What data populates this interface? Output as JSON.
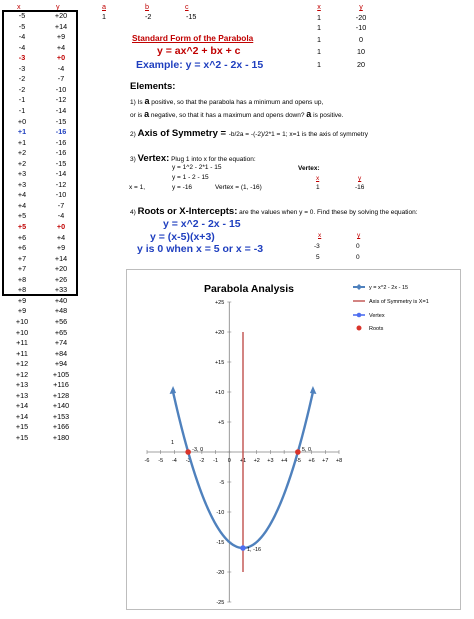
{
  "left_table": {
    "x_header": "x",
    "y_header": "y",
    "rows": [
      {
        "x": "-5",
        "y": "+20"
      },
      {
        "x": "-5",
        "y": "+14"
      },
      {
        "x": "-4",
        "y": "+9"
      },
      {
        "x": "-4",
        "y": "+4"
      },
      {
        "x": "-3",
        "y": "+0",
        "hl": "red"
      },
      {
        "x": "-3",
        "y": "-4"
      },
      {
        "x": "-2",
        "y": "-7"
      },
      {
        "x": "-2",
        "y": "-10"
      },
      {
        "x": "-1",
        "y": "-12"
      },
      {
        "x": "-1",
        "y": "-14"
      },
      {
        "x": "+0",
        "y": "-15"
      },
      {
        "x": "+1",
        "y": "-16",
        "hl": "blue"
      },
      {
        "x": "+1",
        "y": "-16"
      },
      {
        "x": "+2",
        "y": "-16"
      },
      {
        "x": "+2",
        "y": "-15"
      },
      {
        "x": "+3",
        "y": "-14"
      },
      {
        "x": "+3",
        "y": "-12"
      },
      {
        "x": "+4",
        "y": "-10"
      },
      {
        "x": "+4",
        "y": "-7"
      },
      {
        "x": "+5",
        "y": "-4"
      },
      {
        "x": "+5",
        "y": "+0",
        "hl": "red"
      },
      {
        "x": "+6",
        "y": "+4"
      },
      {
        "x": "+6",
        "y": "+9"
      },
      {
        "x": "+7",
        "y": "+14"
      },
      {
        "x": "+7",
        "y": "+20"
      },
      {
        "x": "+8",
        "y": "+26"
      },
      {
        "x": "+8",
        "y": "+33"
      },
      {
        "x": "+9",
        "y": "+40"
      },
      {
        "x": "+9",
        "y": "+48"
      },
      {
        "x": "+10",
        "y": "+56"
      },
      {
        "x": "+10",
        "y": "+65"
      },
      {
        "x": "+11",
        "y": "+74"
      },
      {
        "x": "+11",
        "y": "+84"
      },
      {
        "x": "+12",
        "y": "+94"
      },
      {
        "x": "+12",
        "y": "+105"
      },
      {
        "x": "+13",
        "y": "+116"
      },
      {
        "x": "+13",
        "y": "+128"
      },
      {
        "x": "+14",
        "y": "+140"
      },
      {
        "x": "+14",
        "y": "+153"
      },
      {
        "x": "+15",
        "y": "+166"
      },
      {
        "x": "+15",
        "y": "+180"
      }
    ]
  },
  "coeffs": {
    "a_header": "a",
    "b_header": "b",
    "c_header": "c",
    "a": "1",
    "b": "-2",
    "c": "-15"
  },
  "std_form": {
    "title": "Standard Form of the Parabola",
    "formula": "y = ax^2 + bx + c",
    "example": "Example: y = x^2 - 2x - 15"
  },
  "right_table": {
    "x_header": "x",
    "y_header": "y",
    "rows": [
      {
        "x": "1",
        "y": "-20"
      },
      {
        "x": "1",
        "y": "-10"
      },
      {
        "x": "1",
        "y": "0"
      },
      {
        "x": "1",
        "y": "10"
      },
      {
        "x": "1",
        "y": "20"
      }
    ]
  },
  "elements": {
    "title": "Elements:",
    "line1_pre": "1) Is ",
    "line1_a": "a",
    "line1_post": " positive, so that the parabola has a minimum and opens up,",
    "line2_pre": "or is ",
    "line2_a": "a",
    "line2_mid": " negative, so that it has a maximum and opens down? ",
    "line2_a2": "a",
    "line2_post": " is positive."
  },
  "axis": {
    "num": "2) ",
    "title": "Axis of Symmetry = ",
    "formula": "-b/2a = -(-2)/2*1 = 1; x=1 is the axis of symmetry"
  },
  "vertex": {
    "num": "3) ",
    "title": "Vertex:",
    "desc": " Plug 1 into x for the equation:",
    "line1": "y = 1^2 - 2*1 - 15",
    "line2": "y = 1 - 2 - 15",
    "x_label": "x = 1,",
    "y_eq": "y = -16",
    "vertex_text": "Vertex = (1, -16)",
    "v_header": "Vertex:",
    "vx_header": "x",
    "vy_header": "y",
    "vx": "1",
    "vy": "-16"
  },
  "roots": {
    "num": "4) ",
    "title": "Roots or X-Intercepts:",
    "desc": " are the values when y = 0. Find these by solving the equation:",
    "eq1": "y = x^2 - 2x - 15",
    "eq2": "y = (x-5)(x+3)",
    "eq3": "y is 0 when x = 5 or x = -3",
    "x_header": "x",
    "y_header": "y",
    "rows": [
      {
        "x": "-3",
        "y": "0"
      },
      {
        "x": "5",
        "y": "0"
      }
    ]
  },
  "chart_data": {
    "type": "line",
    "title": "Parabola Analysis",
    "xlim": [
      -6,
      8
    ],
    "ylim": [
      -25,
      25
    ],
    "x_ticks": [
      "-6",
      "-5",
      "-4",
      "-3",
      "-2",
      "-1",
      "0",
      "+1",
      "+2",
      "+3",
      "+4",
      "+5",
      "+6",
      "+7",
      "+8"
    ],
    "y_ticks": [
      "+25",
      "+20",
      "+15",
      "+10",
      "+5",
      "0",
      "-5",
      "-10",
      "-15",
      "-20",
      "-25"
    ],
    "series": [
      {
        "name": "y = x^2 - 2x - 15",
        "color": "#4f81bd",
        "formula": "x^2 - 2x - 15",
        "x_range": [
          -4.1,
          6.1
        ]
      },
      {
        "name": "Axis of Symmetry is X=1",
        "color": "#c0504d",
        "x": [
          1,
          1
        ],
        "y": [
          -20,
          20
        ]
      },
      {
        "name": "Vertex",
        "color": "#4f6ff0",
        "x": [
          1
        ],
        "y": [
          -16
        ]
      },
      {
        "name": "Roots",
        "color": "#d9342b",
        "x": [
          -3,
          5
        ],
        "y": [
          0,
          0
        ]
      }
    ],
    "annotations": [
      {
        "text": "1",
        "x": -4.1,
        "y": 1
      },
      {
        "text": "-3, 0",
        "x": -3,
        "y": 0
      },
      {
        "text": "5, 0",
        "x": 5,
        "y": 0
      },
      {
        "text": "1, -16",
        "x": 1,
        "y": -16
      }
    ],
    "legend_position": "right"
  }
}
